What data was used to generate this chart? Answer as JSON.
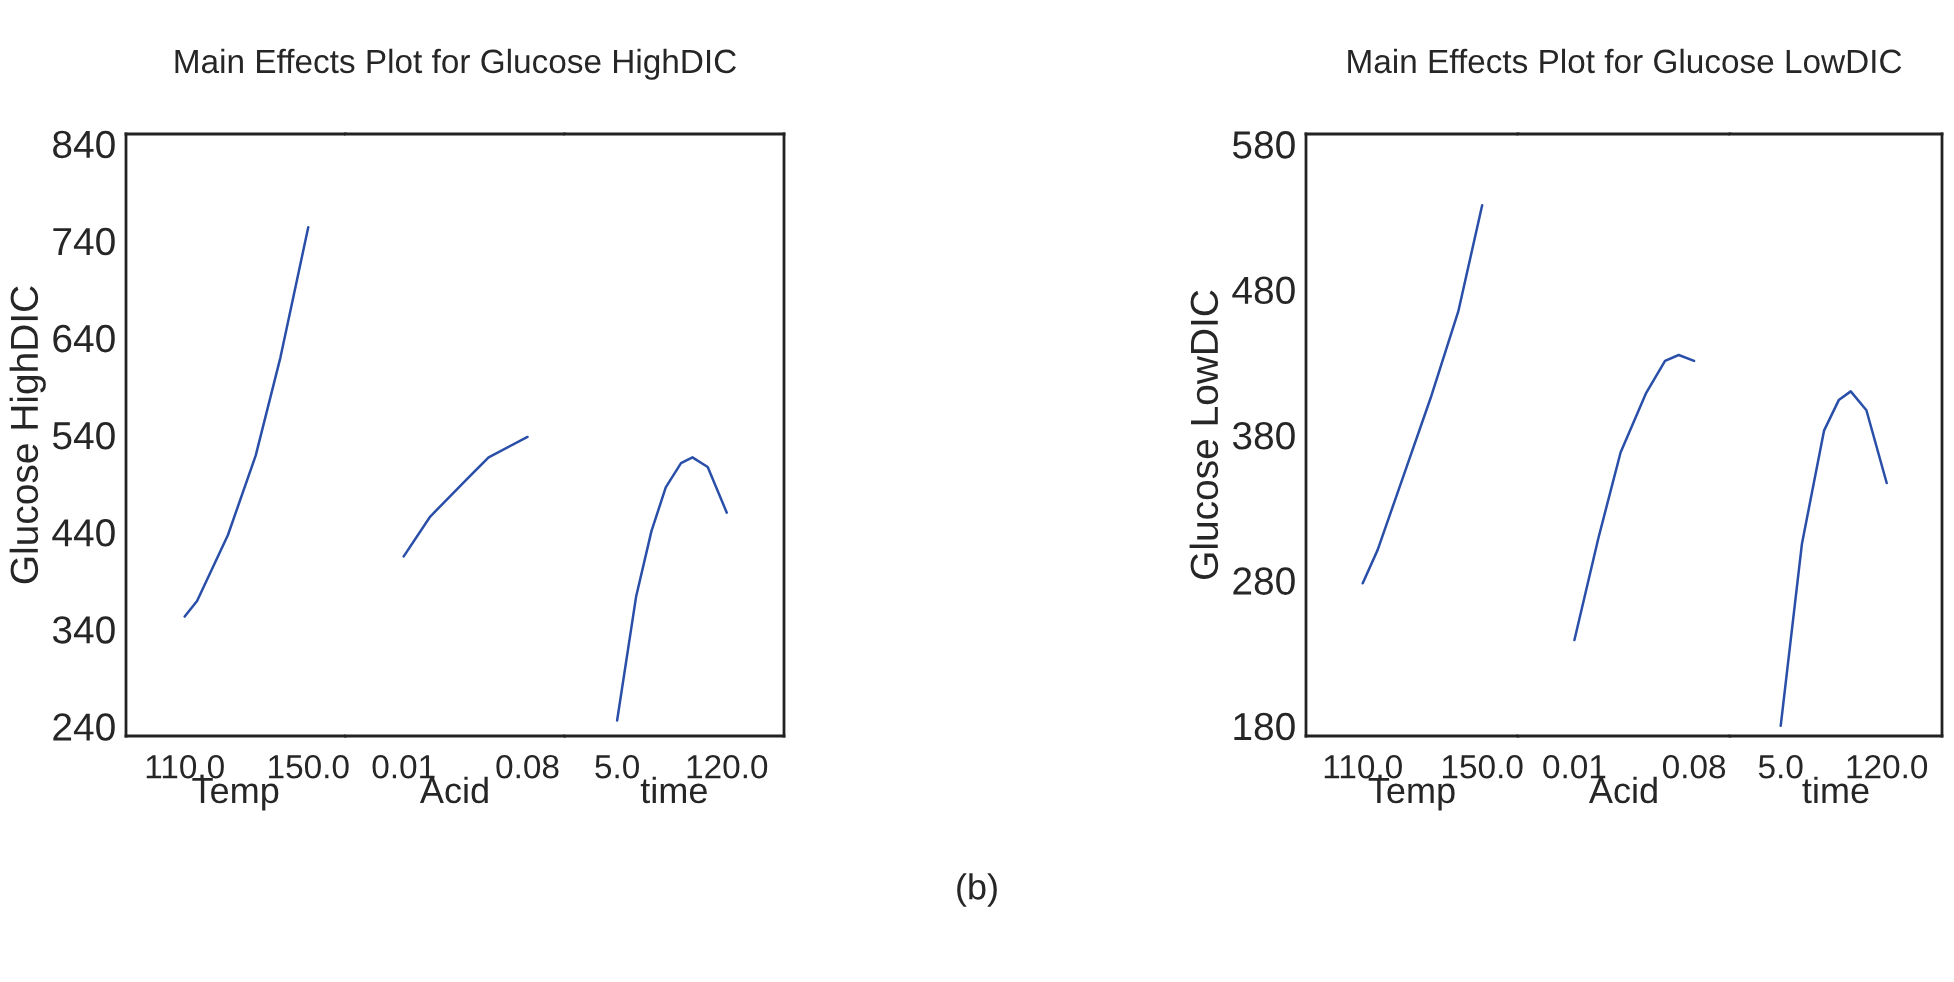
{
  "chart_data": [
    {
      "type": "line",
      "ylabel": "Glucose HighDIC",
      "xlabel": "Temp",
      "annotations": [
        "(b)"
      ],
      "x": [
        110,
        114,
        124,
        133,
        141,
        150
      ],
      "series": [
        {
          "color": "#2a4fa8",
          "values": [
            353,
            369,
            437,
            519,
            620,
            754
          ]
        }
      ],
      "xlim": [
        91,
        162
      ],
      "xticks": [
        {
          "value": 110,
          "label": "110.0"
        },
        {
          "value": 150,
          "label": "150.0"
        }
      ],
      "ylim": [
        230,
        850
      ],
      "yticks": [
        240,
        340,
        440,
        540,
        640,
        740,
        840
      ],
      "grid": false,
      "legend": false,
      "marker": "none",
      "line_style": "solid"
    },
    {
      "type": "line",
      "title": "Main Effects Plot for Glucose HighDIC",
      "xlabel": "Acid",
      "x": [
        0.01,
        0.025,
        0.047,
        0.058,
        0.08
      ],
      "series": [
        {
          "color": "#2a4fa8",
          "values": [
            415,
            456,
            497,
            517,
            538
          ]
        }
      ],
      "xlim": [
        -0.023,
        0.101
      ],
      "xticks": [
        {
          "value": 0.01,
          "label": "0.01"
        },
        {
          "value": 0.08,
          "label": "0.08"
        }
      ],
      "ylim": [
        230,
        850
      ],
      "tick_labels": "x",
      "grid": false,
      "legend": false,
      "marker": "none",
      "line_style": "solid"
    },
    {
      "type": "line",
      "xlabel": "time",
      "x": [
        5,
        25,
        41,
        56,
        72,
        84,
        100,
        120
      ],
      "series": [
        {
          "color": "#2a4fa8",
          "values": [
            246,
            374,
            441,
            486,
            511,
            517,
            507,
            460
          ]
        }
      ],
      "xlim": [
        -50,
        180
      ],
      "xticks": [
        {
          "value": 5,
          "label": "5.0"
        },
        {
          "value": 120,
          "label": "120.0"
        }
      ],
      "ylim": [
        230,
        850
      ],
      "tick_labels": "x",
      "grid": false,
      "legend": false,
      "marker": "none",
      "line_style": "solid"
    },
    {
      "type": "line",
      "ylabel": "Glucose LowDIC",
      "xlabel": "Temp",
      "x": [
        110,
        115,
        124,
        133,
        142,
        150
      ],
      "series": [
        {
          "color": "#2a4fa8",
          "values": [
            278,
            301,
            354,
            407,
            465,
            538
          ]
        }
      ],
      "xlim": [
        91,
        162
      ],
      "xticks": [
        {
          "value": 110,
          "label": "110.0"
        },
        {
          "value": 150,
          "label": "150.0"
        }
      ],
      "ylim": [
        173,
        587
      ],
      "yticks": [
        180,
        280,
        380,
        480,
        580
      ],
      "grid": false,
      "legend": false,
      "marker": "none",
      "line_style": "solid"
    },
    {
      "type": "line",
      "title": "Main Effects Plot for Glucose LowDIC",
      "xlabel": "Acid",
      "x": [
        0.01,
        0.024,
        0.037,
        0.052,
        0.063,
        0.071,
        0.08
      ],
      "series": [
        {
          "color": "#2a4fa8",
          "values": [
            239,
            309,
            368,
            409,
            431,
            435,
            431
          ]
        }
      ],
      "xlim": [
        -0.023,
        0.101
      ],
      "xticks": [
        {
          "value": 0.01,
          "label": "0.01"
        },
        {
          "value": 0.08,
          "label": "0.08"
        }
      ],
      "ylim": [
        173,
        587
      ],
      "tick_labels": "x",
      "grid": false,
      "legend": false,
      "marker": "none",
      "line_style": "solid"
    },
    {
      "type": "line",
      "xlabel": "time",
      "x": [
        5,
        28,
        52,
        68,
        81,
        98,
        120
      ],
      "series": [
        {
          "color": "#2a4fa8",
          "values": [
            180,
            305,
            383,
            404,
            410,
            397,
            347
          ]
        }
      ],
      "xlim": [
        -50,
        180
      ],
      "xticks": [
        {
          "value": 5,
          "label": "5.0"
        },
        {
          "value": 120,
          "label": "120.0"
        }
      ],
      "ylim": [
        173,
        587
      ],
      "tick_labels": "x",
      "grid": false,
      "legend": false,
      "marker": "none",
      "line_style": "solid"
    }
  ]
}
